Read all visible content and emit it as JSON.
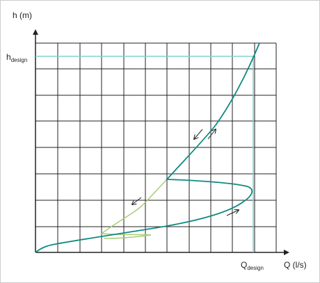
{
  "y_axis_label": "h (m)",
  "x_axis_label": "Q (l/s)",
  "h_design": {
    "symbol": "h",
    "subscript": "design"
  },
  "q_design": {
    "symbol": "Q",
    "subscript": "design"
  }
}
